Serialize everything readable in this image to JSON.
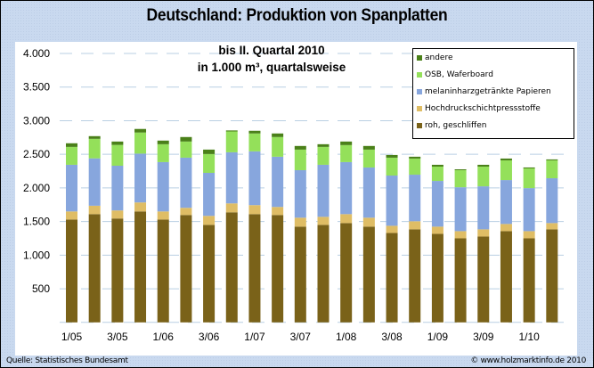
{
  "chart_data": {
    "type": "bar",
    "stacked": true,
    "title": "Deutschland: Produktion von Spanplatten",
    "subtitle_lines": [
      "bis II. Quartal 2010",
      "in 1.000 m³, quartalsweise"
    ],
    "xlabel": "",
    "ylabel": "",
    "ylim": [
      0,
      4000
    ],
    "yticks": [
      0,
      500,
      1000,
      1500,
      2000,
      2500,
      3000,
      3500,
      4000
    ],
    "ytick_labels": [
      "",
      "500",
      "1.000",
      "1.500",
      "2.000",
      "2.500",
      "3.000",
      "3.500",
      "4.000"
    ],
    "grid": "horizontal-dashed",
    "legend_position": "top-right",
    "categories": [
      "1/05",
      "2/05",
      "3/05",
      "4/05",
      "1/06",
      "2/06",
      "3/06",
      "4/06",
      "1/07",
      "2/07",
      "3/07",
      "4/07",
      "1/08",
      "2/08",
      "3/08",
      "4/08",
      "1/09",
      "2/09",
      "3/09",
      "4/09",
      "1/10",
      "2/10"
    ],
    "xtick_labels": [
      "1/05",
      "",
      "3/05",
      "",
      "1/06",
      "",
      "3/06",
      "",
      "1/07",
      "",
      "3/07",
      "",
      "1/08",
      "",
      "3/08",
      "",
      "1/09",
      "",
      "3/09",
      "",
      "1/10",
      ""
    ],
    "series": [
      {
        "name": "roh, geschliffen",
        "color": "#7a6219",
        "values": [
          1530,
          1610,
          1545,
          1650,
          1530,
          1597,
          1450,
          1637,
          1610,
          1597,
          1424,
          1450,
          1477,
          1424,
          1330,
          1384,
          1317,
          1250,
          1277,
          1357,
          1250,
          1384
        ]
      },
      {
        "name": "Hochdruckschichtpressstoffe",
        "color": "#dfbd65",
        "values": [
          120,
          125,
          120,
          134,
          120,
          107,
          134,
          133,
          134,
          120,
          133,
          120,
          133,
          133,
          107,
          120,
          107,
          107,
          107,
          107,
          107,
          93
        ]
      },
      {
        "name": "melaninharzgetränkte Papieren",
        "color": "#87a6dd",
        "values": [
          694,
          705,
          665,
          726,
          734,
          746,
          640,
          760,
          800,
          747,
          707,
          774,
          774,
          747,
          747,
          693,
          680,
          653,
          640,
          653,
          640,
          667
        ]
      },
      {
        "name": "OSB, Waferboard",
        "color": "#94e05a",
        "values": [
          266,
          290,
          310,
          314,
          266,
          240,
          280,
          310,
          266,
          293,
          306,
          266,
          253,
          266,
          266,
          240,
          213,
          254,
          293,
          293,
          293,
          266
        ]
      },
      {
        "name": "andere",
        "color": "#4a8019",
        "values": [
          54,
          40,
          50,
          53,
          54,
          67,
          66,
          15,
          40,
          53,
          54,
          40,
          53,
          54,
          40,
          27,
          27,
          13,
          27,
          27,
          14,
          14
        ]
      }
    ]
  },
  "legend": {
    "items": [
      {
        "label": "andere",
        "color": "#4a8019"
      },
      {
        "label": "OSB, Waferboard",
        "color": "#94e05a"
      },
      {
        "label": "melaninharzgetränkte Papieren",
        "color": "#87a6dd"
      },
      {
        "label": "Hochdruckschichtpressstoffe",
        "color": "#dfbd65"
      },
      {
        "label": "roh, geschliffen",
        "color": "#7a6219"
      }
    ]
  },
  "footer": {
    "source": "Quelle: Statistisches Bundesamt",
    "copyright": "© www.holzmarktinfo.de 2010"
  }
}
